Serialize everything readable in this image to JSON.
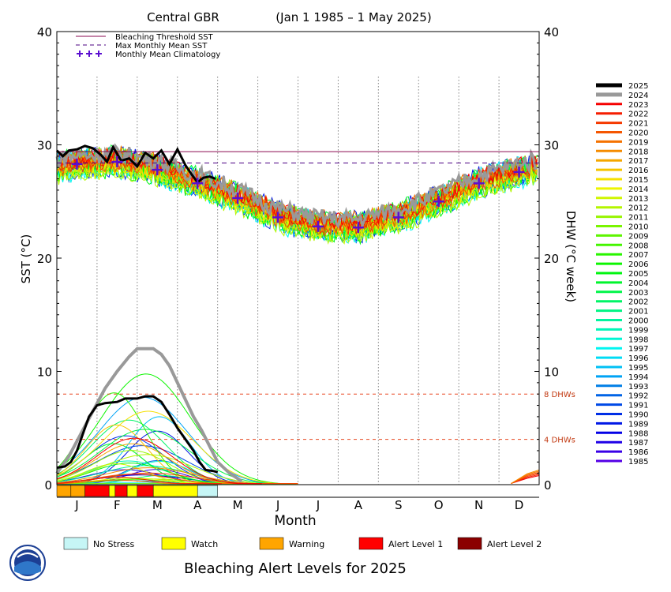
{
  "chart_data": {
    "type": "line",
    "title": "Central GBR",
    "date_range": "(Jan 1 1985 – 1 May 2025)",
    "xlabel": "Month",
    "ylabel_left": "SST (°C)",
    "ylabel_right": "DHW (°C week)",
    "ylim": [
      0,
      40
    ],
    "yticks_left": [
      "0",
      "10",
      "20",
      "30",
      "40"
    ],
    "yticks_right": [
      "0",
      "10",
      "20",
      "30",
      "40"
    ],
    "months": [
      "J",
      "F",
      "M",
      "A",
      "M",
      "J",
      "J",
      "A",
      "S",
      "O",
      "N",
      "D"
    ],
    "bleaching_threshold_sst": 29.4,
    "max_monthly_mean_sst": 28.4,
    "dhw_thresholds": [
      {
        "value": 8,
        "label": "8 DHWs"
      },
      {
        "value": 4,
        "label": "4 DHWs"
      }
    ],
    "legend_top": [
      {
        "label": "Bleaching Threshold SST",
        "style": "solid",
        "color": "#8b0a50"
      },
      {
        "label": "Max Monthly Mean SST",
        "style": "dashed",
        "color": "#4b0082"
      },
      {
        "label": "Monthly Mean Climatology",
        "style": "plus",
        "color": "#5b0fd0"
      }
    ],
    "climatology": {
      "x": [
        0.5,
        1.5,
        2.5,
        3.5,
        4.5,
        5.5,
        6.5,
        7.5,
        8.5,
        9.5,
        10.5,
        11.5
      ],
      "y": [
        28.3,
        28.5,
        27.8,
        26.6,
        25.3,
        23.6,
        22.8,
        22.7,
        23.6,
        25.0,
        26.6,
        27.6
      ]
    },
    "sst_2025": {
      "x": [
        0.0,
        0.15,
        0.3,
        0.5,
        0.7,
        0.9,
        1.1,
        1.25,
        1.4,
        1.6,
        1.8,
        2.0,
        2.2,
        2.4,
        2.6,
        2.8,
        3.0,
        3.2,
        3.35,
        3.5,
        3.65,
        3.8,
        3.95
      ],
      "y": [
        29.5,
        29.0,
        29.5,
        29.6,
        29.9,
        29.7,
        29.1,
        28.5,
        29.8,
        28.6,
        28.8,
        28.1,
        29.3,
        28.8,
        29.5,
        28.3,
        29.6,
        28.2,
        27.4,
        26.7,
        27.1,
        27.2,
        27.0
      ]
    },
    "dhw_2025": {
      "x": [
        0.0,
        0.2,
        0.35,
        0.5,
        0.65,
        0.8,
        1.0,
        1.2,
        1.5,
        1.7,
        2.0,
        2.2,
        2.4,
        2.6,
        2.8,
        3.0,
        3.2,
        3.4,
        3.55,
        3.7,
        3.9,
        4.0
      ],
      "y": [
        1.5,
        1.6,
        2.0,
        3.0,
        4.5,
        6.0,
        7.0,
        7.2,
        7.3,
        7.6,
        7.6,
        7.8,
        7.8,
        7.3,
        6.2,
        5.0,
        4.0,
        3.0,
        2.0,
        1.3,
        1.2,
        1.1
      ]
    },
    "dhw_2024": {
      "x": [
        0.0,
        0.3,
        0.6,
        0.9,
        1.2,
        1.5,
        1.8,
        2.0,
        2.2,
        2.4,
        2.6,
        2.8,
        3.0,
        3.2,
        3.4,
        3.6,
        3.8,
        4.0,
        4.3,
        4.6
      ],
      "y": [
        1.0,
        2.5,
        4.5,
        6.5,
        8.5,
        10.0,
        11.3,
        12.0,
        12.0,
        12.0,
        11.5,
        10.5,
        9.0,
        7.5,
        6.0,
        4.8,
        3.4,
        2.0,
        1.0,
        0.3
      ]
    },
    "legend_years": [
      "2025",
      "2024",
      "2023",
      "2022",
      "2021",
      "2020",
      "2019",
      "2018",
      "2017",
      "2016",
      "2015",
      "2014",
      "2013",
      "2012",
      "2011",
      "2010",
      "2009",
      "2008",
      "2007",
      "2006",
      "2005",
      "2004",
      "2003",
      "2002",
      "2001",
      "2000",
      "1999",
      "1998",
      "1997",
      "1996",
      "1995",
      "1994",
      "1993",
      "1992",
      "1991",
      "1990",
      "1989",
      "1988",
      "1987",
      "1986",
      "1985"
    ],
    "alert_levels": [
      "No Stress",
      "Watch",
      "Warning",
      "Alert Level 1",
      "Alert Level 2"
    ],
    "alert_colors": [
      "#c6f6f6",
      "#ffff00",
      "#ffa500",
      "#ff0000",
      "#8b0000"
    ],
    "alert_bar_2025": [
      {
        "start": 0.0,
        "end": 0.35,
        "level": 2
      },
      {
        "start": 0.35,
        "end": 0.7,
        "level": 2
      },
      {
        "start": 0.7,
        "end": 1.3,
        "level": 3
      },
      {
        "start": 1.3,
        "end": 1.45,
        "level": 1
      },
      {
        "start": 1.45,
        "end": 1.75,
        "level": 3
      },
      {
        "start": 1.75,
        "end": 2.0,
        "level": 1
      },
      {
        "start": 2.0,
        "end": 2.4,
        "level": 3
      },
      {
        "start": 2.4,
        "end": 3.5,
        "level": 1
      },
      {
        "start": 3.5,
        "end": 4.0,
        "level": 0
      }
    ]
  },
  "footer_title": "Bleaching Alert Levels for 2025"
}
